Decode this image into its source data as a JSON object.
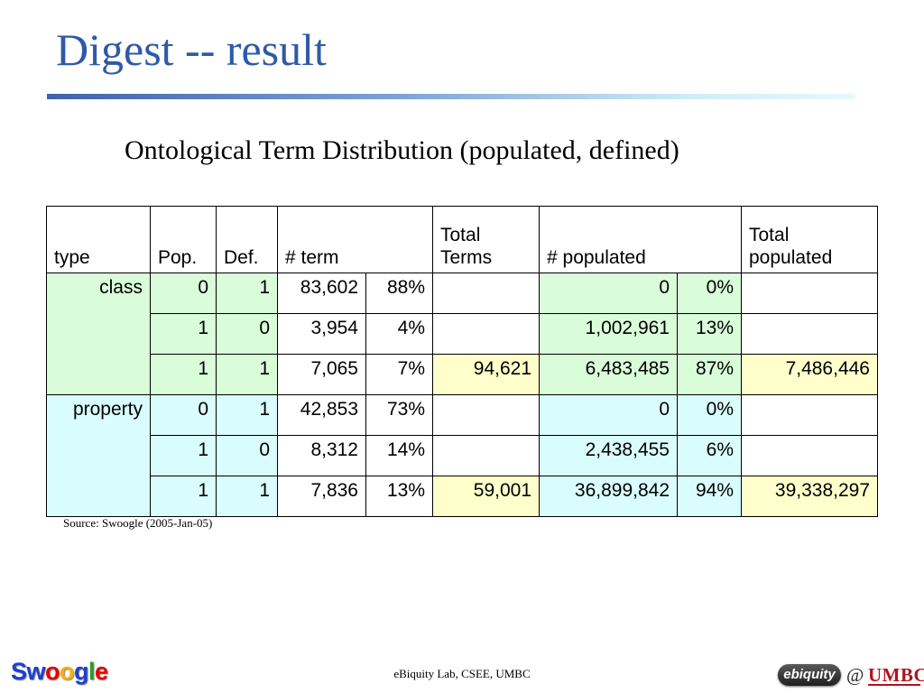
{
  "slide": {
    "title": "Digest -- result",
    "subtitle": "Ontological Term Distribution (populated, defined)",
    "source": "Source: Swoogle (2005-Jan-05)",
    "footer": "eBiquity Lab, CSEE, UMBC"
  },
  "table": {
    "headers": {
      "type": "type",
      "pop": "Pop.",
      "def": "Def.",
      "term": "# term",
      "total_terms": "Total Terms",
      "populated": "# populated",
      "total_populated": "Total populated"
    },
    "groups": [
      {
        "type": "class",
        "color": "#d9fcd9",
        "rows": [
          {
            "pop": "0",
            "def": "1",
            "term": "83,602",
            "term_pct": "88%",
            "total_terms": "",
            "populated": "0",
            "populated_pct": "0%",
            "total_populated": ""
          },
          {
            "pop": "1",
            "def": "0",
            "term": "3,954",
            "term_pct": "4%",
            "total_terms": "",
            "populated": "1,002,961",
            "populated_pct": "13%",
            "total_populated": ""
          },
          {
            "pop": "1",
            "def": "1",
            "term": "7,065",
            "term_pct": "7%",
            "total_terms": "94,621",
            "populated": "6,483,485",
            "populated_pct": "87%",
            "total_populated": "7,486,446"
          }
        ]
      },
      {
        "type": "property",
        "color": "#d9fcfc",
        "rows": [
          {
            "pop": "0",
            "def": "1",
            "term": "42,853",
            "term_pct": "73%",
            "total_terms": "",
            "populated": "0",
            "populated_pct": "0%",
            "total_populated": ""
          },
          {
            "pop": "1",
            "def": "0",
            "term": "8,312",
            "term_pct": "14%",
            "total_terms": "",
            "populated": "2,438,455",
            "populated_pct": "6%",
            "total_populated": ""
          },
          {
            "pop": "1",
            "def": "1",
            "term": "7,836",
            "term_pct": "13%",
            "total_terms": "59,001",
            "populated": "36,899,842",
            "populated_pct": "94%",
            "total_populated": "39,338,297"
          }
        ]
      }
    ],
    "total_color": "#ffffcc"
  },
  "logos": {
    "swoogle_letters": [
      "S",
      "w",
      "o",
      "o",
      "g",
      "l",
      "e"
    ],
    "swoogle_colors": [
      "#1c3fd1",
      "#1c3fd1",
      "#e60000",
      "#f3b100",
      "#1c3fd1",
      "#2a9d2a",
      "#e60000"
    ],
    "ebiquity": "ebiquity",
    "at": "@",
    "umbc": "UMBC"
  }
}
